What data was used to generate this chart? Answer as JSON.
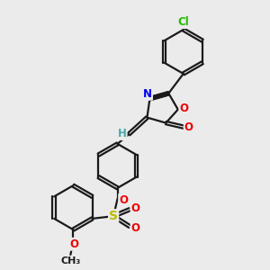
{
  "bg_color": "#ebebeb",
  "bond_color": "#1a1a1a",
  "bond_width": 1.6,
  "dbo": 0.07,
  "atom_colors": {
    "N": "#0000ee",
    "O": "#ee0000",
    "S": "#bbbb00",
    "Cl": "#22bb00",
    "H_label": "#44aaaa",
    "C": "#1a1a1a"
  },
  "font_size": 8.5,
  "fig_size": [
    3.0,
    3.0
  ],
  "dpi": 100
}
